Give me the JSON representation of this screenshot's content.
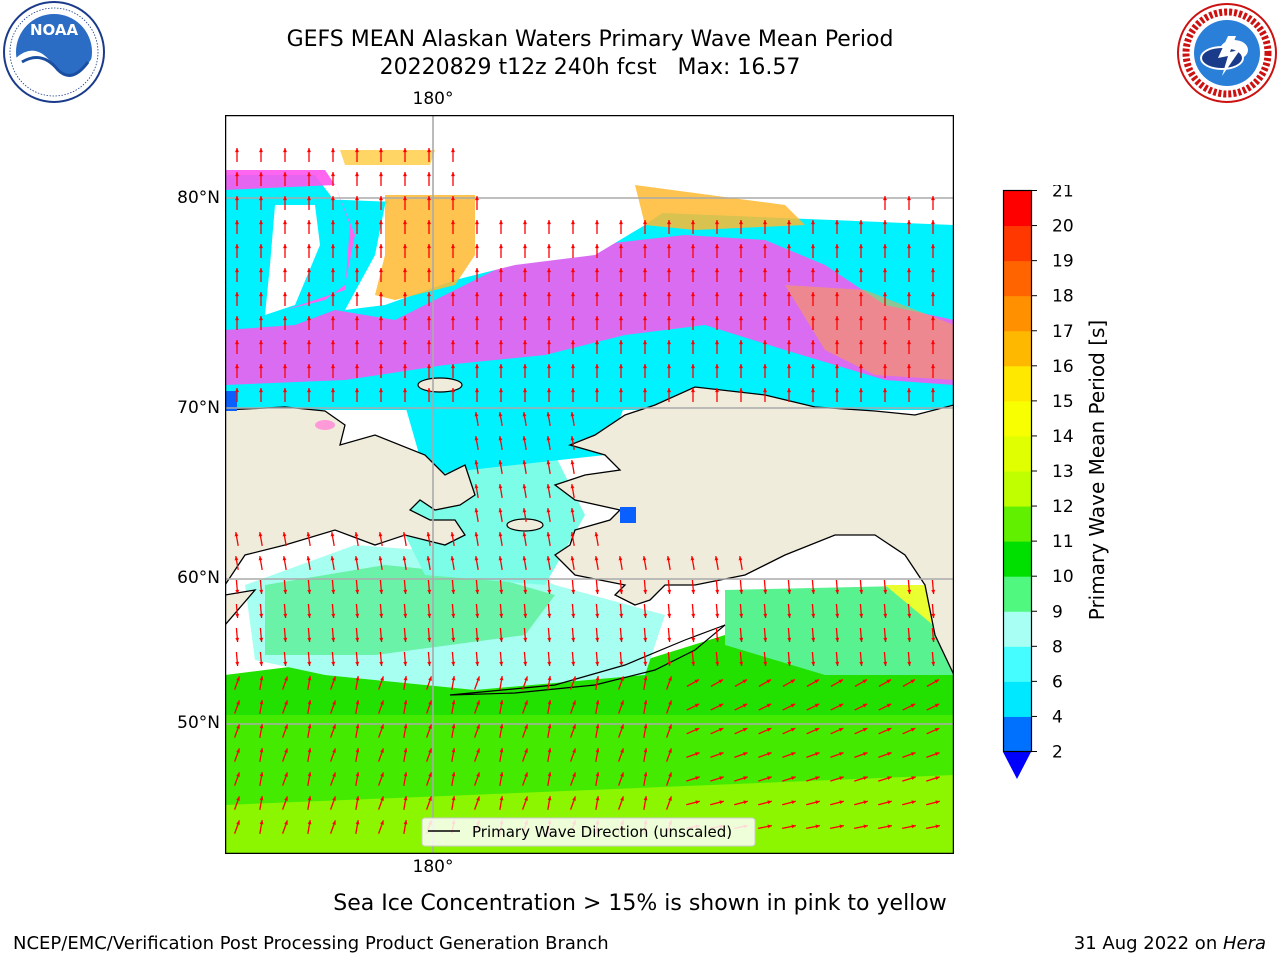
{
  "header": {
    "title_line1": "GEFS MEAN Alaskan Waters Primary Wave Mean Period",
    "title_line2": "20220829 t12z 240h fcst   Max: 16.57"
  },
  "logos": {
    "noaa": {
      "icon": "noaa-logo",
      "text": "NOAA",
      "ring_text": "NATIONAL OCEANIC AND ATMOSPHERIC ADMINISTRATION · U.S. DEPARTMENT OF COMMERCE"
    },
    "nws": {
      "icon": "nws-logo",
      "ring_text": "NATIONAL WEATHER SERVICE"
    }
  },
  "map": {
    "lon_label_top": "180°",
    "lon_label_bottom": "180°",
    "lat_labels": [
      "80°N",
      "70°N",
      "60°N",
      "50°N"
    ],
    "legend_label": "Primary Wave Direction (unscaled)",
    "land_color": "#efecdc",
    "arrow_color": "#ff0000",
    "grid_color": "#b0b0b0"
  },
  "colorbar": {
    "label": "Primary Wave Mean Period [s]",
    "ticks": [
      "2",
      "4",
      "6",
      "8",
      "9",
      "10",
      "11",
      "12",
      "13",
      "14",
      "15",
      "16",
      "17",
      "18",
      "19",
      "20",
      "21"
    ],
    "colors": [
      "#0070ff",
      "#00e8ff",
      "#45fcff",
      "#a8fff4",
      "#50f880",
      "#00e000",
      "#60f000",
      "#c0ff00",
      "#e0ff00",
      "#f8ff00",
      "#ffe800",
      "#ffb800",
      "#ff9000",
      "#ff6400",
      "#ff3800",
      "#ff0000"
    ],
    "extend_below_color": "#0000ff"
  },
  "footer": {
    "note": "Sea Ice Concentration > 15% is shown in pink to yellow",
    "credit_left": "NCEP/EMC/Verification Post Processing Product Generation Branch",
    "credit_right_prefix": "31 Aug 2022 on ",
    "credit_right_machine": "Hera"
  }
}
